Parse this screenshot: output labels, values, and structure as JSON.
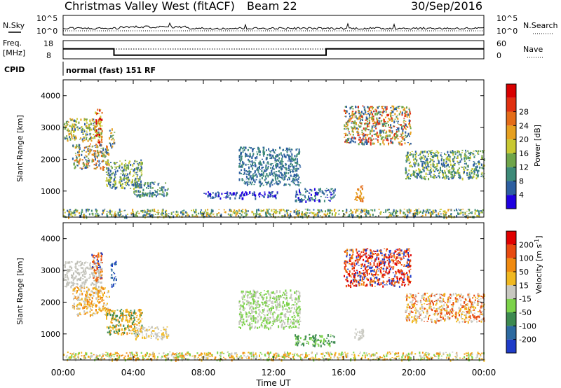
{
  "header": {
    "station": "Christmas Valley West (fitACF)",
    "beam": "Beam 22",
    "date": "30/Sep/2016"
  },
  "strips": {
    "nsky_label": "N.Sky",
    "nsky_tick_hi": "10^5",
    "nsky_tick_lo": "10^0",
    "nsearch_label": "N.Search",
    "nsearch_tick_hi": "10^5",
    "nsearch_tick_lo": "10^0",
    "freq_label_1": "Freq.",
    "freq_label_2": "[MHz]",
    "freq_tick_hi": "18",
    "freq_tick_lo": "8",
    "nave_label": "Nave",
    "nave_tick_hi": "60",
    "nave_tick_lo": "0",
    "cpid_label": "CPID",
    "cpid_text": "normal (fast) 151 RF"
  },
  "chart_data": [
    {
      "type": "heatmap",
      "name": "power",
      "xlabel": "",
      "ylabel": "Slant Range [km]",
      "x_ticks": [
        "00:00",
        "04:00",
        "08:00",
        "12:00",
        "16:00",
        "20:00",
        "00:00"
      ],
      "y_ticks": [
        "1000",
        "2000",
        "3000",
        "4000"
      ],
      "y_range_km": [
        180,
        4500
      ],
      "x_range_hours": [
        0,
        24
      ],
      "colorbar": {
        "label": "Power [dB]",
        "ticks": [
          "4",
          "8",
          "12",
          "16",
          "20",
          "24",
          "28"
        ],
        "colors": [
          "#1f00e0",
          "#2d5fa0",
          "#3d8a78",
          "#6fa54a",
          "#c8c832",
          "#e6a020",
          "#e46c18",
          "#e03010",
          "#d80000"
        ]
      },
      "regions": [
        {
          "t0": 0.0,
          "t1": 2.2,
          "r0": 2600,
          "r1": 3300,
          "colors": [
            "#2d5fa0",
            "#6fa54a",
            "#c8c832",
            "#e6a020"
          ]
        },
        {
          "t0": 0.5,
          "t1": 2.6,
          "r0": 1700,
          "r1": 2500,
          "colors": [
            "#6fa54a",
            "#e6a020",
            "#e46c18",
            "#2d5fa0"
          ]
        },
        {
          "t0": 1.8,
          "t1": 2.2,
          "r0": 2500,
          "r1": 3600,
          "colors": [
            "#e46c18",
            "#c8c832",
            "#d80000"
          ]
        },
        {
          "t0": 2.6,
          "t1": 2.9,
          "r0": 2400,
          "r1": 3000,
          "colors": [
            "#e6a020",
            "#6fa54a",
            "#2d5fa0"
          ]
        },
        {
          "t0": 2.4,
          "t1": 4.5,
          "r0": 1100,
          "r1": 2000,
          "colors": [
            "#6fa54a",
            "#2d5fa0",
            "#c8c832"
          ]
        },
        {
          "t0": 4.0,
          "t1": 6.0,
          "r0": 850,
          "r1": 1300,
          "colors": [
            "#2d5fa0",
            "#3d8a78",
            "#6fa54a"
          ]
        },
        {
          "t0": 8.0,
          "t1": 12.2,
          "r0": 800,
          "r1": 1000,
          "colors": [
            "#2d5fa0",
            "#1f00e0"
          ]
        },
        {
          "t0": 10.0,
          "t1": 13.5,
          "r0": 1200,
          "r1": 2400,
          "colors": [
            "#2d5fa0",
            "#3d8a78"
          ]
        },
        {
          "t0": 13.2,
          "t1": 15.5,
          "r0": 700,
          "r1": 1100,
          "colors": [
            "#2d5fa0",
            "#1f00e0",
            "#3d8a78"
          ]
        },
        {
          "t0": 16.6,
          "t1": 17.1,
          "r0": 700,
          "r1": 1200,
          "colors": [
            "#e6a020",
            "#e46c18"
          ]
        },
        {
          "t0": 16.0,
          "t1": 19.8,
          "r0": 2500,
          "r1": 3700,
          "colors": [
            "#6fa54a",
            "#e6a020",
            "#e03010",
            "#2d5fa0"
          ]
        },
        {
          "t0": 19.5,
          "t1": 24.0,
          "r0": 1400,
          "r1": 2300,
          "colors": [
            "#2d5fa0",
            "#3d8a78",
            "#6fa54a",
            "#c8c832"
          ]
        },
        {
          "t0": 0.0,
          "t1": 24.0,
          "r0": 200,
          "r1": 450,
          "colors": [
            "#3d8a78",
            "#6fa54a",
            "#c8c832",
            "#2d5fa0",
            "#e6a020"
          ]
        }
      ]
    },
    {
      "type": "heatmap",
      "name": "velocity",
      "xlabel": "Time UT",
      "ylabel": "Slant Range [km]",
      "x_ticks": [
        "00:00",
        "04:00",
        "08:00",
        "12:00",
        "16:00",
        "20:00",
        "00:00"
      ],
      "y_ticks": [
        "1000",
        "2000",
        "3000",
        "4000"
      ],
      "y_range_km": [
        180,
        4500
      ],
      "x_range_hours": [
        0,
        24
      ],
      "colorbar": {
        "label": "Velocity [m s^-1]",
        "ticks": [
          "200",
          "100",
          "50",
          "15",
          "-15",
          "-50",
          "-100",
          "-200"
        ],
        "colors": [
          "#1f3cc8",
          "#2d6aa0",
          "#3d8a50",
          "#7cd24a",
          "#c8c8c0",
          "#f0b820",
          "#f08a10",
          "#e84a10",
          "#e00000"
        ]
      },
      "regions": [
        {
          "t0": 0.0,
          "t1": 2.2,
          "r0": 2500,
          "r1": 3300,
          "colors": [
            "#c8c8c0",
            "#bdbdb5"
          ]
        },
        {
          "t0": 0.5,
          "t1": 2.6,
          "r0": 1600,
          "r1": 2500,
          "colors": [
            "#f0b820",
            "#c8c8c0",
            "#f08a10"
          ]
        },
        {
          "t0": 1.6,
          "t1": 2.2,
          "r0": 2700,
          "r1": 3600,
          "colors": [
            "#e84a10",
            "#1f3cc8",
            "#f08a10"
          ]
        },
        {
          "t0": 2.7,
          "t1": 3.0,
          "r0": 2500,
          "r1": 3300,
          "colors": [
            "#1f3cc8",
            "#2d6aa0"
          ]
        },
        {
          "t0": 2.4,
          "t1": 4.5,
          "r0": 1000,
          "r1": 1800,
          "colors": [
            "#f0b820",
            "#3d8a50",
            "#f08a10"
          ]
        },
        {
          "t0": 4.0,
          "t1": 6.0,
          "r0": 850,
          "r1": 1250,
          "colors": [
            "#c8c8c0",
            "#f0b820"
          ]
        },
        {
          "t0": 10.0,
          "t1": 13.5,
          "r0": 1200,
          "r1": 2400,
          "colors": [
            "#7cd24a",
            "#c8c8c0"
          ]
        },
        {
          "t0": 13.2,
          "t1": 15.5,
          "r0": 650,
          "r1": 1000,
          "colors": [
            "#7cd24a",
            "#3d8a50"
          ]
        },
        {
          "t0": 16.6,
          "t1": 17.1,
          "r0": 800,
          "r1": 1200,
          "colors": [
            "#c8c8c0"
          ]
        },
        {
          "t0": 16.0,
          "t1": 19.8,
          "r0": 2500,
          "r1": 3700,
          "colors": [
            "#e00000",
            "#e84a10",
            "#1f3cc8",
            "#f08a10"
          ]
        },
        {
          "t0": 19.5,
          "t1": 24.0,
          "r0": 1400,
          "r1": 2300,
          "colors": [
            "#c8c8c0",
            "#f0b820",
            "#e84a10"
          ]
        },
        {
          "t0": 0.0,
          "t1": 24.0,
          "r0": 200,
          "r1": 450,
          "colors": [
            "#f0b820",
            "#7cd24a",
            "#f08a10",
            "#c8c8c0"
          ]
        }
      ]
    },
    {
      "type": "line",
      "name": "frequency",
      "ylabel": "Freq. [MHz]",
      "ylim": [
        8,
        18
      ],
      "x": [
        0,
        2.9,
        2.9,
        15.0,
        15.0,
        24
      ],
      "y": [
        13.5,
        13.5,
        10.0,
        10.0,
        13.5,
        13.5
      ]
    }
  ]
}
